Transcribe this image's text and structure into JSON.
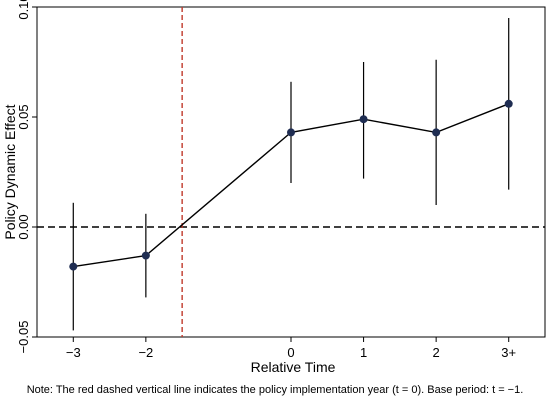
{
  "chart_data": {
    "type": "line",
    "title": "",
    "xlabel": "Relative Time",
    "ylabel": "Policy Dynamic Effect",
    "categories": [
      "−3",
      "−2",
      "0",
      "1",
      "2",
      "3+"
    ],
    "x": [
      -3,
      -2,
      0,
      1,
      2,
      3
    ],
    "y": [
      -0.018,
      -0.013,
      0.043,
      0.049,
      0.043,
      0.056
    ],
    "ci_lower": [
      -0.047,
      -0.032,
      0.02,
      0.022,
      0.01,
      0.017
    ],
    "ci_upper": [
      0.011,
      0.006,
      0.066,
      0.075,
      0.076,
      0.095
    ],
    "ylim": [
      -0.05,
      0.1
    ],
    "yticks": [
      -0.05,
      0.0,
      0.05,
      0.1
    ],
    "ytick_labels": [
      "−0.05",
      "0.00",
      "0.05",
      "0.10"
    ],
    "xlim": [
      -3.5,
      3.5
    ],
    "reference_lines": {
      "horizontal": {
        "value": 0,
        "style": "dashed",
        "color": "#000000"
      },
      "vertical": {
        "value": -1.5,
        "style": "dashed",
        "color": "#c0392b"
      }
    },
    "grid": false,
    "legend": "none",
    "colors": {
      "marker": "#1f2d52",
      "line": "#000000",
      "vline": "#c0392b"
    },
    "note": "Note: The red dashed vertical line indicates the policy implementation year (t = 0). Base period: t = −1."
  }
}
